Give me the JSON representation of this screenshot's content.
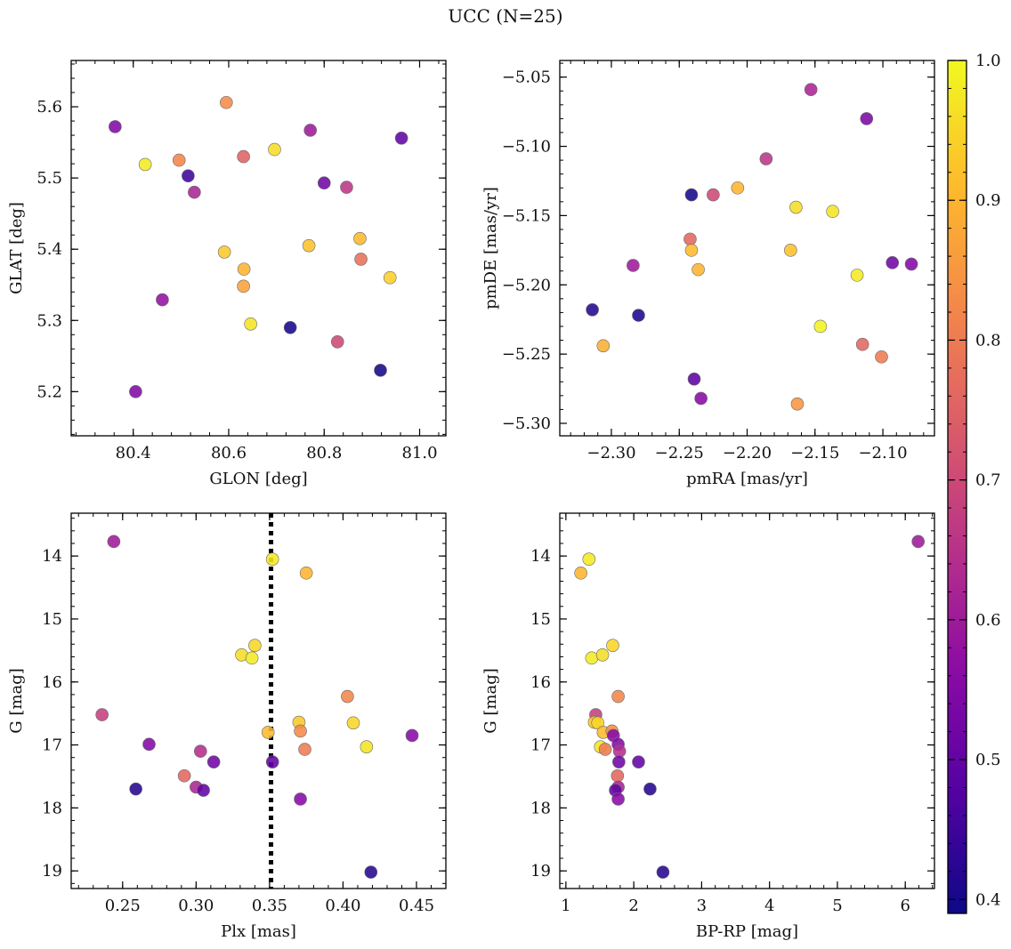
{
  "title": "UCC (N=25)",
  "colorbar": {
    "min": 0.39,
    "max": 1.0,
    "ticks": [
      "0.4",
      "0.5",
      "0.6",
      "0.7",
      "0.8",
      "0.9",
      "1.0"
    ],
    "tick_values": [
      0.4,
      0.5,
      0.6,
      0.7,
      0.8,
      0.9,
      1.0
    ],
    "colormap": "plasma"
  },
  "chart_data": [
    {
      "type": "scatter",
      "xlabel": "GLON [deg]",
      "ylabel": "GLAT [deg]",
      "xlim": [
        80.27,
        81.055
      ],
      "ylim": [
        5.138,
        5.665
      ],
      "y_inverted": false,
      "xticks": [
        80.4,
        80.6,
        80.8,
        81.0
      ],
      "xtick_labels": [
        "80.4",
        "80.6",
        "80.8",
        "81.0"
      ],
      "yticks": [
        5.2,
        5.3,
        5.4,
        5.5,
        5.6
      ],
      "ytick_labels": [
        "5.2",
        "5.3",
        "5.4",
        "5.5",
        "5.6"
      ],
      "points": [
        {
          "x": 80.362,
          "y": 5.572,
          "c": 0.55
        },
        {
          "x": 80.425,
          "y": 5.519,
          "c": 0.98
        },
        {
          "x": 80.405,
          "y": 5.2,
          "c": 0.55
        },
        {
          "x": 80.461,
          "y": 5.329,
          "c": 0.58
        },
        {
          "x": 80.496,
          "y": 5.525,
          "c": 0.82
        },
        {
          "x": 80.515,
          "y": 5.503,
          "c": 0.45
        },
        {
          "x": 80.528,
          "y": 5.48,
          "c": 0.62
        },
        {
          "x": 80.595,
          "y": 5.606,
          "c": 0.83
        },
        {
          "x": 80.591,
          "y": 5.396,
          "c": 0.93
        },
        {
          "x": 80.631,
          "y": 5.53,
          "c": 0.75
        },
        {
          "x": 80.632,
          "y": 5.372,
          "c": 0.9
        },
        {
          "x": 80.631,
          "y": 5.348,
          "c": 0.87
        },
        {
          "x": 80.646,
          "y": 5.295,
          "c": 0.97
        },
        {
          "x": 80.696,
          "y": 5.54,
          "c": 0.96
        },
        {
          "x": 80.729,
          "y": 5.29,
          "c": 0.4
        },
        {
          "x": 80.771,
          "y": 5.567,
          "c": 0.6
        },
        {
          "x": 80.768,
          "y": 5.405,
          "c": 0.92
        },
        {
          "x": 80.8,
          "y": 5.493,
          "c": 0.52
        },
        {
          "x": 80.828,
          "y": 5.27,
          "c": 0.7
        },
        {
          "x": 80.847,
          "y": 5.487,
          "c": 0.66
        },
        {
          "x": 80.875,
          "y": 5.415,
          "c": 0.91
        },
        {
          "x": 80.877,
          "y": 5.386,
          "c": 0.78
        },
        {
          "x": 80.918,
          "y": 5.23,
          "c": 0.4
        },
        {
          "x": 80.938,
          "y": 5.36,
          "c": 0.94
        },
        {
          "x": 80.962,
          "y": 5.556,
          "c": 0.5
        }
      ]
    },
    {
      "type": "scatter",
      "xlabel": "pmRA [mas/yr]",
      "ylabel": "pmDE [mas/yr]",
      "xlim": [
        -2.338,
        -2.062
      ],
      "ylim": [
        -5.309,
        -5.038
      ],
      "y_inverted": false,
      "xticks": [
        -2.3,
        -2.25,
        -2.2,
        -2.15,
        -2.1
      ],
      "xtick_labels": [
        "−2.30",
        "−2.25",
        "−2.20",
        "−2.15",
        "−2.10"
      ],
      "yticks": [
        -5.3,
        -5.25,
        -5.2,
        -5.15,
        -5.1,
        -5.05
      ],
      "ytick_labels": [
        "−5.30",
        "−5.25",
        "−5.20",
        "−5.15",
        "−5.10",
        "−5.05"
      ],
      "points": [
        {
          "x": -2.314,
          "y": -5.218,
          "c": 0.42
        },
        {
          "x": -2.306,
          "y": -5.244,
          "c": 0.89
        },
        {
          "x": -2.284,
          "y": -5.186,
          "c": 0.6
        },
        {
          "x": -2.28,
          "y": -5.222,
          "c": 0.41
        },
        {
          "x": -2.242,
          "y": -5.167,
          "c": 0.76
        },
        {
          "x": -2.241,
          "y": -5.175,
          "c": 0.91
        },
        {
          "x": -2.241,
          "y": -5.135,
          "c": 0.4
        },
        {
          "x": -2.239,
          "y": -5.268,
          "c": 0.49
        },
        {
          "x": -2.236,
          "y": -5.189,
          "c": 0.9
        },
        {
          "x": -2.234,
          "y": -5.282,
          "c": 0.56
        },
        {
          "x": -2.225,
          "y": -5.135,
          "c": 0.7
        },
        {
          "x": -2.207,
          "y": -5.13,
          "c": 0.9
        },
        {
          "x": -2.186,
          "y": -5.109,
          "c": 0.66
        },
        {
          "x": -2.168,
          "y": -5.175,
          "c": 0.92
        },
        {
          "x": -2.164,
          "y": -5.144,
          "c": 0.96
        },
        {
          "x": -2.163,
          "y": -5.286,
          "c": 0.85
        },
        {
          "x": -2.153,
          "y": -5.059,
          "c": 0.62
        },
        {
          "x": -2.146,
          "y": -5.23,
          "c": 0.99
        },
        {
          "x": -2.137,
          "y": -5.147,
          "c": 0.97
        },
        {
          "x": -2.119,
          "y": -5.193,
          "c": 0.98
        },
        {
          "x": -2.115,
          "y": -5.243,
          "c": 0.76
        },
        {
          "x": -2.112,
          "y": -5.08,
          "c": 0.54
        },
        {
          "x": -2.101,
          "y": -5.252,
          "c": 0.8
        },
        {
          "x": -2.093,
          "y": -5.184,
          "c": 0.52
        },
        {
          "x": -2.079,
          "y": -5.185,
          "c": 0.55
        }
      ]
    },
    {
      "type": "scatter",
      "xlabel": "Plx [mas]",
      "ylabel": "G [mag]",
      "xlim": [
        0.215,
        0.47
      ],
      "ylim": [
        13.32,
        19.28
      ],
      "y_inverted": true,
      "xticks": [
        0.25,
        0.3,
        0.35,
        0.4,
        0.45
      ],
      "xtick_labels": [
        "0.25",
        "0.30",
        "0.35",
        "0.40",
        "0.45"
      ],
      "yticks": [
        14,
        15,
        16,
        17,
        18,
        19
      ],
      "ytick_labels": [
        "14",
        "15",
        "16",
        "17",
        "18",
        "19"
      ],
      "vline": {
        "x": 0.351,
        "style": "dotted"
      },
      "points": [
        {
          "x": 0.244,
          "y": 13.77,
          "c": 0.6
        },
        {
          "x": 0.236,
          "y": 16.52,
          "c": 0.68
        },
        {
          "x": 0.259,
          "y": 17.7,
          "c": 0.42
        },
        {
          "x": 0.268,
          "y": 16.99,
          "c": 0.55
        },
        {
          "x": 0.292,
          "y": 17.49,
          "c": 0.76
        },
        {
          "x": 0.3,
          "y": 17.67,
          "c": 0.62
        },
        {
          "x": 0.303,
          "y": 17.1,
          "c": 0.64
        },
        {
          "x": 0.305,
          "y": 17.72,
          "c": 0.5
        },
        {
          "x": 0.312,
          "y": 17.27,
          "c": 0.52
        },
        {
          "x": 0.331,
          "y": 15.57,
          "c": 0.96
        },
        {
          "x": 0.338,
          "y": 15.62,
          "c": 0.98
        },
        {
          "x": 0.34,
          "y": 15.42,
          "c": 0.95
        },
        {
          "x": 0.349,
          "y": 16.8,
          "c": 0.91
        },
        {
          "x": 0.352,
          "y": 14.05,
          "c": 0.98
        },
        {
          "x": 0.352,
          "y": 17.27,
          "c": 0.5
        },
        {
          "x": 0.37,
          "y": 16.64,
          "c": 0.93
        },
        {
          "x": 0.371,
          "y": 16.78,
          "c": 0.83
        },
        {
          "x": 0.371,
          "y": 17.86,
          "c": 0.56
        },
        {
          "x": 0.374,
          "y": 17.07,
          "c": 0.8
        },
        {
          "x": 0.375,
          "y": 14.27,
          "c": 0.9
        },
        {
          "x": 0.403,
          "y": 16.23,
          "c": 0.82
        },
        {
          "x": 0.407,
          "y": 16.65,
          "c": 0.95
        },
        {
          "x": 0.416,
          "y": 17.03,
          "c": 0.97
        },
        {
          "x": 0.419,
          "y": 19.02,
          "c": 0.42
        },
        {
          "x": 0.447,
          "y": 16.85,
          "c": 0.56
        }
      ]
    },
    {
      "type": "scatter",
      "xlabel": "BP-RP [mag]",
      "ylabel": "G [mag]",
      "xlim": [
        0.91,
        6.43
      ],
      "ylim": [
        13.32,
        19.28
      ],
      "y_inverted": true,
      "xticks": [
        1,
        2,
        3,
        4,
        5,
        6
      ],
      "xtick_labels": [
        "1",
        "2",
        "3",
        "4",
        "5",
        "6"
      ],
      "yticks": [
        14,
        15,
        16,
        17,
        18,
        19
      ],
      "ytick_labels": [
        "14",
        "15",
        "16",
        "17",
        "18",
        "19"
      ],
      "points": [
        {
          "x": 1.22,
          "y": 14.27,
          "c": 0.9
        },
        {
          "x": 1.34,
          "y": 14.05,
          "c": 0.98
        },
        {
          "x": 1.38,
          "y": 15.62,
          "c": 0.98
        },
        {
          "x": 1.54,
          "y": 15.57,
          "c": 0.96
        },
        {
          "x": 1.69,
          "y": 15.42,
          "c": 0.95
        },
        {
          "x": 1.44,
          "y": 16.52,
          "c": 0.68
        },
        {
          "x": 1.42,
          "y": 16.64,
          "c": 0.93
        },
        {
          "x": 1.47,
          "y": 16.65,
          "c": 0.95
        },
        {
          "x": 1.55,
          "y": 16.8,
          "c": 0.91
        },
        {
          "x": 1.68,
          "y": 16.78,
          "c": 0.83
        },
        {
          "x": 1.7,
          "y": 16.85,
          "c": 0.56
        },
        {
          "x": 1.51,
          "y": 17.03,
          "c": 0.97
        },
        {
          "x": 1.58,
          "y": 17.07,
          "c": 0.8
        },
        {
          "x": 1.77,
          "y": 16.99,
          "c": 0.55
        },
        {
          "x": 1.79,
          "y": 17.1,
          "c": 0.64
        },
        {
          "x": 1.77,
          "y": 16.23,
          "c": 0.82
        },
        {
          "x": 1.78,
          "y": 17.27,
          "c": 0.52
        },
        {
          "x": 2.07,
          "y": 17.27,
          "c": 0.5
        },
        {
          "x": 1.76,
          "y": 17.49,
          "c": 0.76
        },
        {
          "x": 1.77,
          "y": 17.67,
          "c": 0.62
        },
        {
          "x": 1.73,
          "y": 17.72,
          "c": 0.5
        },
        {
          "x": 1.77,
          "y": 17.86,
          "c": 0.56
        },
        {
          "x": 2.24,
          "y": 17.7,
          "c": 0.42
        },
        {
          "x": 2.43,
          "y": 19.02,
          "c": 0.42
        },
        {
          "x": 6.19,
          "y": 13.77,
          "c": 0.6
        }
      ]
    }
  ]
}
